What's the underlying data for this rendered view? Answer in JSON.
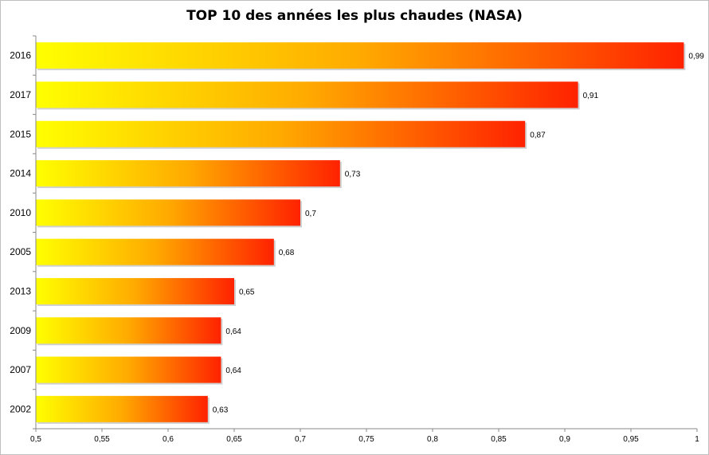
{
  "chart_data": {
    "type": "bar",
    "orientation": "horizontal",
    "title": "TOP 10 des années les plus chaudes (NASA)",
    "categories": [
      "2016",
      "2017",
      "2015",
      "2014",
      "2010",
      "2005",
      "2013",
      "2009",
      "2007",
      "2002"
    ],
    "values": [
      0.99,
      0.91,
      0.87,
      0.73,
      0.7,
      0.68,
      0.65,
      0.64,
      0.64,
      0.63
    ],
    "data_labels": [
      "0,99",
      "0,91",
      "0,87",
      "0,73",
      "0,7",
      "0,68",
      "0,65",
      "0,64",
      "0,64",
      "0,63"
    ],
    "xlim": [
      0.5,
      1
    ],
    "xticks": [
      0.5,
      0.55,
      0.6,
      0.65,
      0.7,
      0.75,
      0.8,
      0.85,
      0.9,
      0.95,
      1
    ],
    "xtick_labels": [
      "0,5",
      "0,55",
      "0,6",
      "0,65",
      "0,7",
      "0,75",
      "0,8",
      "0,85",
      "0,9",
      "0,95",
      "1"
    ],
    "grid": false,
    "legend": "none",
    "colors": {
      "gradient_start": "#ffff00",
      "gradient_mid": "#ffaa00",
      "gradient_end": "#ff2200"
    }
  }
}
